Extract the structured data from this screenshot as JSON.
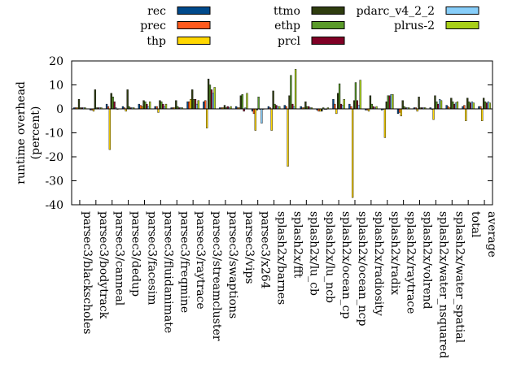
{
  "chart_data": {
    "type": "bar",
    "ylabel": "runtime overhead (percent)",
    "ylabel_lines": [
      "runtime overhead",
      "(percent)"
    ],
    "ylim": [
      -40,
      20
    ],
    "yticks": [
      -40,
      -30,
      -20,
      -10,
      0,
      10,
      20
    ],
    "legend_position": "top",
    "categories": [
      "parsec3/blackscholes",
      "parsec3/bodytrack",
      "parsec3/canneal",
      "parsec3/dedup",
      "parsec3/facesim",
      "parsec3/fluidanimate",
      "parsec3/freqmine",
      "parsec3/raytrace",
      "parsec3/streamcluster",
      "parsec3/swaptions",
      "parsec3/vips",
      "parsec3/x264",
      "splash2x/barnes",
      "splash2x/fft",
      "splash2x/lu_cb",
      "splash2x/lu_ncb",
      "splash2x/ocean_cp",
      "splash2x/ocean_ncp",
      "splash2x/radiosity",
      "splash2x/radix",
      "splash2x/raytrace",
      "splash2x/volrend",
      "splash2x/water_nsquared",
      "splash2x/water_spatial",
      "total",
      "average"
    ],
    "series": [
      {
        "name": "rec",
        "color": "#004a8c",
        "values": [
          0.5,
          -0.5,
          2.0,
          1.0,
          2.0,
          1.0,
          0.5,
          3.0,
          3.0,
          0.5,
          1.0,
          -1.0,
          1.0,
          1.5,
          1.0,
          -0.5,
          4.0,
          2.0,
          -0.5,
          -0.5,
          -2.0,
          0.5,
          0.5,
          1.5,
          1.0,
          1.0
        ]
      },
      {
        "name": "prec",
        "color": "#ff5a1e",
        "values": [
          0.5,
          -0.5,
          1.0,
          0.5,
          1.5,
          1.0,
          0.5,
          3.0,
          3.5,
          0.5,
          0.5,
          -2.0,
          0.5,
          1.0,
          0.5,
          -1.0,
          2.0,
          1.0,
          -0.5,
          0.0,
          -1.5,
          0.5,
          0.0,
          1.0,
          1.5,
          1.0
        ]
      },
      {
        "name": "thp",
        "color": "#ffd700",
        "values": [
          0.5,
          -1.0,
          -17.0,
          -1.0,
          1.0,
          -1.5,
          0.5,
          4.0,
          -8.0,
          0.5,
          0.5,
          -9.0,
          -9.0,
          -24.0,
          0.5,
          -1.0,
          -2.0,
          -37.0,
          -1.0,
          -12.0,
          -3.0,
          -1.0,
          -4.5,
          0.5,
          -5.0,
          -5.0
        ]
      },
      {
        "name": "ttmo",
        "color": "#2f3d0f",
        "values": [
          4.0,
          8.0,
          6.5,
          8.0,
          3.5,
          3.5,
          3.5,
          8.0,
          12.5,
          1.5,
          5.5,
          -0.5,
          7.5,
          5.5,
          3.0,
          -1.0,
          6.5,
          3.5,
          5.5,
          3.0,
          3.5,
          5.0,
          5.5,
          4.5,
          4.5,
          4.5
        ]
      },
      {
        "name": "ethp",
        "color": "#5a9a2a",
        "values": [
          0.5,
          0.5,
          5.0,
          1.0,
          3.0,
          3.0,
          1.0,
          4.0,
          10.0,
          0.5,
          6.0,
          5.0,
          2.0,
          14.0,
          1.0,
          0.5,
          10.5,
          11.0,
          2.0,
          5.5,
          1.0,
          0.5,
          3.0,
          3.0,
          3.0,
          3.0
        ]
      },
      {
        "name": "prcl",
        "color": "#800026",
        "values": [
          0.5,
          0.5,
          3.0,
          0.5,
          2.0,
          2.0,
          0.5,
          4.0,
          8.0,
          1.0,
          -1.0,
          0.0,
          1.5,
          2.0,
          1.0,
          0.0,
          2.0,
          3.5,
          1.0,
          5.5,
          0.5,
          0.5,
          2.0,
          2.0,
          2.5,
          2.5
        ]
      },
      {
        "name": "pdarc_v4_2_2",
        "color": "#87cefa",
        "values": [
          0.5,
          0.5,
          0.5,
          0.5,
          1.0,
          1.0,
          0.5,
          2.0,
          6.5,
          0.5,
          0.5,
          -6.0,
          1.0,
          1.0,
          0.5,
          0.0,
          1.5,
          1.5,
          0.5,
          6.0,
          0.5,
          0.5,
          4.0,
          2.5,
          3.0,
          3.0
        ]
      },
      {
        "name": "plrus-2",
        "color": "#a8d018",
        "values": [
          0.5,
          0.5,
          0.0,
          0.5,
          3.0,
          2.0,
          0.5,
          3.5,
          9.0,
          1.0,
          6.5,
          0.0,
          1.0,
          16.5,
          0.5,
          0.5,
          4.0,
          12.0,
          1.0,
          6.0,
          0.5,
          0.5,
          3.5,
          3.0,
          2.5,
          2.5
        ]
      }
    ]
  }
}
